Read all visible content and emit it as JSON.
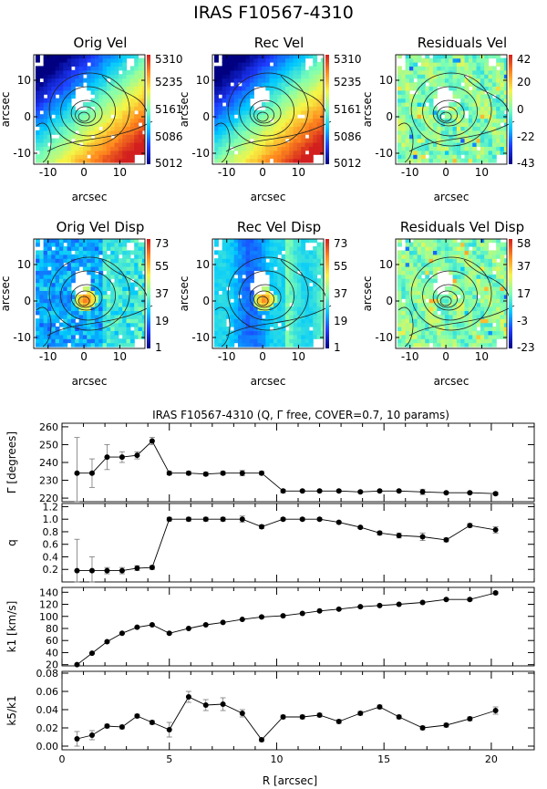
{
  "figure_title": "IRAS F10567-4310",
  "colors": {
    "background": "#ffffff",
    "ink": "#000000",
    "contour": "#222222",
    "colorbar_stops": [
      "#000080",
      "#1e3cff",
      "#00c8ff",
      "#7dffb4",
      "#f5f546",
      "#ff8c1e",
      "#d21e1e"
    ]
  },
  "chart_data": [
    {
      "type": "heatmap",
      "title": "Orig Vel",
      "xlabel": "arcsec",
      "ylabel": "arcsec",
      "xticks": [
        "-10",
        "0",
        "10"
      ],
      "yticks": [
        "10",
        "0",
        "-10"
      ],
      "xlim": [
        -14,
        17
      ],
      "ylim": [
        -13,
        17
      ],
      "colorbar_ticks": [
        "5310",
        "5235",
        "5161",
        "5086",
        "5012"
      ],
      "colorbar_range": [
        5012,
        5310
      ],
      "pattern": "velocity-gradient"
    },
    {
      "type": "heatmap",
      "title": "Rec Vel",
      "xlabel": "arcsec",
      "ylabel": "arcsec",
      "xticks": [
        "-10",
        "0",
        "10"
      ],
      "yticks": [
        "10",
        "0",
        "-10"
      ],
      "xlim": [
        -14,
        17
      ],
      "ylim": [
        -13,
        17
      ],
      "colorbar_ticks": [
        "5310",
        "5235",
        "5161",
        "5086",
        "5012"
      ],
      "colorbar_range": [
        5012,
        5310
      ],
      "pattern": "velocity-gradient"
    },
    {
      "type": "heatmap",
      "title": "Residuals Vel",
      "xlabel": "arcsec",
      "ylabel": "arcsec",
      "xticks": [
        "-10",
        "0",
        "10"
      ],
      "yticks": [
        "10",
        "0",
        "-10"
      ],
      "xlim": [
        -14,
        17
      ],
      "ylim": [
        -13,
        17
      ],
      "colorbar_ticks": [
        "42",
        "20",
        "0",
        "-22",
        "-43"
      ],
      "colorbar_range": [
        -43,
        42
      ],
      "pattern": "residual"
    },
    {
      "type": "heatmap",
      "title": "Orig Vel Disp",
      "xlabel": "arcsec",
      "ylabel": "arcsec",
      "xticks": [
        "-10",
        "0",
        "10"
      ],
      "yticks": [
        "10",
        "0",
        "-10"
      ],
      "xlim": [
        -14,
        17
      ],
      "ylim": [
        -13,
        17
      ],
      "colorbar_ticks": [
        "73",
        "55",
        "37",
        "19",
        "1"
      ],
      "colorbar_range": [
        1,
        73
      ],
      "pattern": "dispersion"
    },
    {
      "type": "heatmap",
      "title": "Rec Vel Disp",
      "xlabel": "arcsec",
      "ylabel": "arcsec",
      "xticks": [
        "-10",
        "0",
        "10"
      ],
      "yticks": [
        "10",
        "0",
        "-10"
      ],
      "xlim": [
        -14,
        17
      ],
      "ylim": [
        -13,
        17
      ],
      "colorbar_ticks": [
        "73",
        "55",
        "37",
        "19",
        "1"
      ],
      "colorbar_range": [
        1,
        73
      ],
      "pattern": "dispersion-model"
    },
    {
      "type": "heatmap",
      "title": "Residuals Vel Disp",
      "xlabel": "arcsec",
      "ylabel": "arcsec",
      "xticks": [
        "-10",
        "0",
        "10"
      ],
      "yticks": [
        "10",
        "0",
        "-10"
      ],
      "xlim": [
        -14,
        17
      ],
      "ylim": [
        -13,
        17
      ],
      "colorbar_ticks": [
        "58",
        "37",
        "17",
        "-3",
        "-23"
      ],
      "colorbar_range": [
        -23,
        58
      ],
      "pattern": "residual"
    },
    {
      "type": "scatter",
      "title": "IRAS F10567-4310 (Q, Γ  free, COVER=0.7, 10 params)",
      "xlabel": "R [arcsec]",
      "xlim": [
        0,
        22
      ],
      "xticks": [
        "0",
        "5",
        "10",
        "15",
        "20"
      ],
      "x": [
        0.7,
        1.4,
        2.1,
        2.8,
        3.5,
        4.2,
        5.0,
        5.9,
        6.7,
        7.5,
        8.4,
        9.3,
        10.3,
        11.2,
        12.0,
        12.9,
        13.9,
        14.8,
        15.7,
        16.8,
        17.9,
        19.0,
        20.2
      ],
      "panels": [
        {
          "ylabel": "Γ [degrees]",
          "ylim": [
            218,
            262
          ],
          "yticks": [
            "220",
            "230",
            "240",
            "250",
            "260"
          ],
          "y": [
            234,
            234,
            243,
            243,
            244,
            252,
            234,
            234,
            233.5,
            234,
            234,
            234,
            224,
            224,
            224,
            224,
            223.5,
            224,
            224,
            223.5,
            223,
            223,
            222.5
          ],
          "err": [
            20,
            8,
            7,
            3,
            2,
            2,
            1,
            1,
            1,
            1,
            1.5,
            1,
            1,
            0.5,
            0.5,
            0.5,
            0.5,
            0.5,
            0.5,
            1.5,
            0.5,
            0.5,
            0.8
          ]
        },
        {
          "ylabel": "q",
          "ylim": [
            0.0,
            1.25
          ],
          "yticks": [
            "0.2",
            "0.4",
            "0.6",
            "0.8",
            "1.0",
            "1.2"
          ],
          "y": [
            0.18,
            0.18,
            0.18,
            0.18,
            0.22,
            0.23,
            1.0,
            1.0,
            1.0,
            1.0,
            1.0,
            0.88,
            1.0,
            1.0,
            1.0,
            0.95,
            0.87,
            0.78,
            0.74,
            0.72,
            0.67,
            0.9,
            0.83
          ],
          "err": [
            0.5,
            0.22,
            0.05,
            0.05,
            0.04,
            0.03,
            0.03,
            0.03,
            0.03,
            0.03,
            0.05,
            0.03,
            0.02,
            0.02,
            0.02,
            0.02,
            0.02,
            0.03,
            0.04,
            0.06,
            0.03,
            0.03,
            0.05
          ]
        },
        {
          "ylabel": "k1 [km/s]",
          "ylim": [
            18,
            148
          ],
          "yticks": [
            "20",
            "40",
            "60",
            "80",
            "100",
            "120",
            "140"
          ],
          "y": [
            20,
            39,
            58,
            72,
            82,
            86,
            72,
            80,
            86,
            90,
            95,
            99,
            101,
            105,
            109,
            112,
            116,
            118,
            120,
            123,
            128,
            128,
            139
          ],
          "err": [
            1,
            1,
            1,
            1,
            1,
            1.5,
            1,
            1,
            1,
            1,
            1,
            1,
            1,
            1,
            1,
            1,
            1,
            1,
            1,
            1,
            1,
            2,
            2
          ]
        },
        {
          "ylabel": "k5/k1",
          "ylim": [
            -0.004,
            0.082
          ],
          "yticks": [
            "0.00",
            "0.02",
            "0.04",
            "0.06",
            "0.08"
          ],
          "y": [
            0.008,
            0.012,
            0.022,
            0.021,
            0.033,
            0.026,
            0.018,
            0.054,
            0.045,
            0.046,
            0.036,
            0.007,
            0.032,
            0.032,
            0.034,
            0.027,
            0.036,
            0.043,
            0.032,
            0.02,
            0.023,
            0.03,
            0.039
          ],
          "err": [
            0.008,
            0.005,
            0.002,
            0.002,
            0.002,
            0.002,
            0.008,
            0.006,
            0.006,
            0.007,
            0.004,
            0.002,
            0.002,
            0.002,
            0.002,
            0.002,
            0.002,
            0.002,
            0.002,
            0.002,
            0.002,
            0.002,
            0.004
          ]
        }
      ]
    }
  ]
}
